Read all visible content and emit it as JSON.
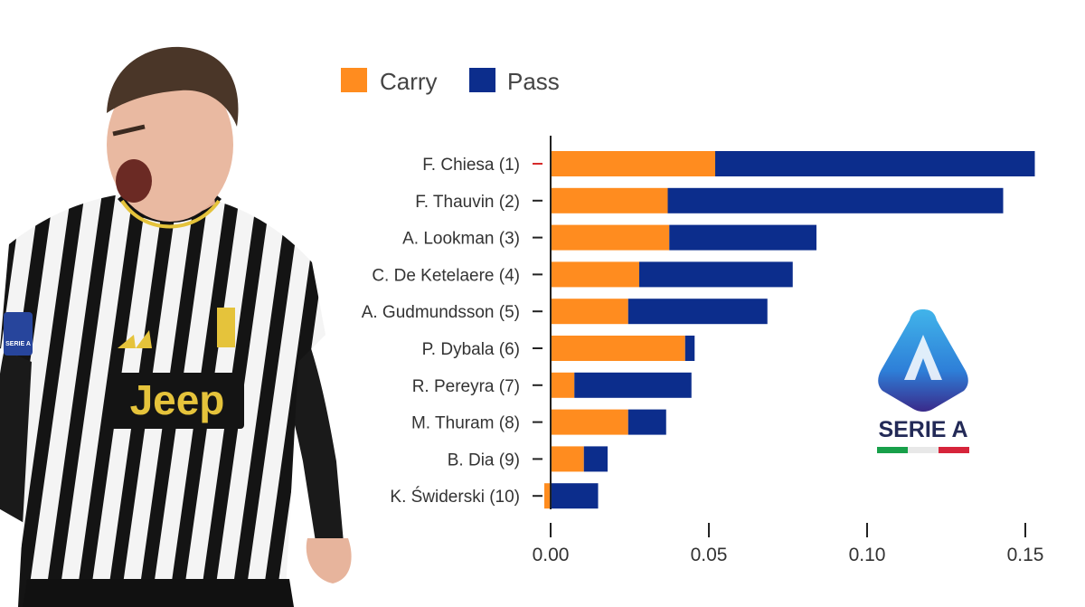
{
  "legend": {
    "carry_label": "Carry",
    "pass_label": "Pass"
  },
  "logo": {
    "wordmark": "SERIE A"
  },
  "photo": {
    "jersey_sponsor": "Jeep",
    "sleeve_badge": "SERIE A"
  },
  "colors": {
    "carry": "#ff8c1f",
    "pass": "#0c2d8c",
    "highlight_label": "#d62b2b",
    "axis": "#222222"
  },
  "chart_data": {
    "type": "bar",
    "orientation": "horizontal",
    "stacked": true,
    "title": "",
    "xlabel": "",
    "ylabel": "",
    "xlim": [
      -0.002,
      0.155
    ],
    "xticks": [
      0.0,
      0.05,
      0.1,
      0.15
    ],
    "xtick_labels": [
      "0.00",
      "0.05",
      "0.10",
      "0.15"
    ],
    "grid": false,
    "legend_position": "top-left",
    "highlight_category": "F. Chiesa (1)",
    "categories": [
      "F. Chiesa (1)",
      "F. Thauvin (2)",
      "A. Lookman (3)",
      "C. De Ketelaere (4)",
      "A. Gudmundsson (5)",
      "P. Dybala (6)",
      "R. Pereyra (7)",
      "M. Thuram (8)",
      "B. Dia (9)",
      "K. Świderski (10)"
    ],
    "series": [
      {
        "name": "Carry",
        "values": [
          0.052,
          0.037,
          0.0375,
          0.028,
          0.0245,
          0.0425,
          0.0075,
          0.0245,
          0.0105,
          -0.002
        ]
      },
      {
        "name": "Pass",
        "values": [
          0.101,
          0.106,
          0.0465,
          0.0485,
          0.044,
          0.003,
          0.037,
          0.012,
          0.0075,
          0.015
        ]
      }
    ]
  }
}
